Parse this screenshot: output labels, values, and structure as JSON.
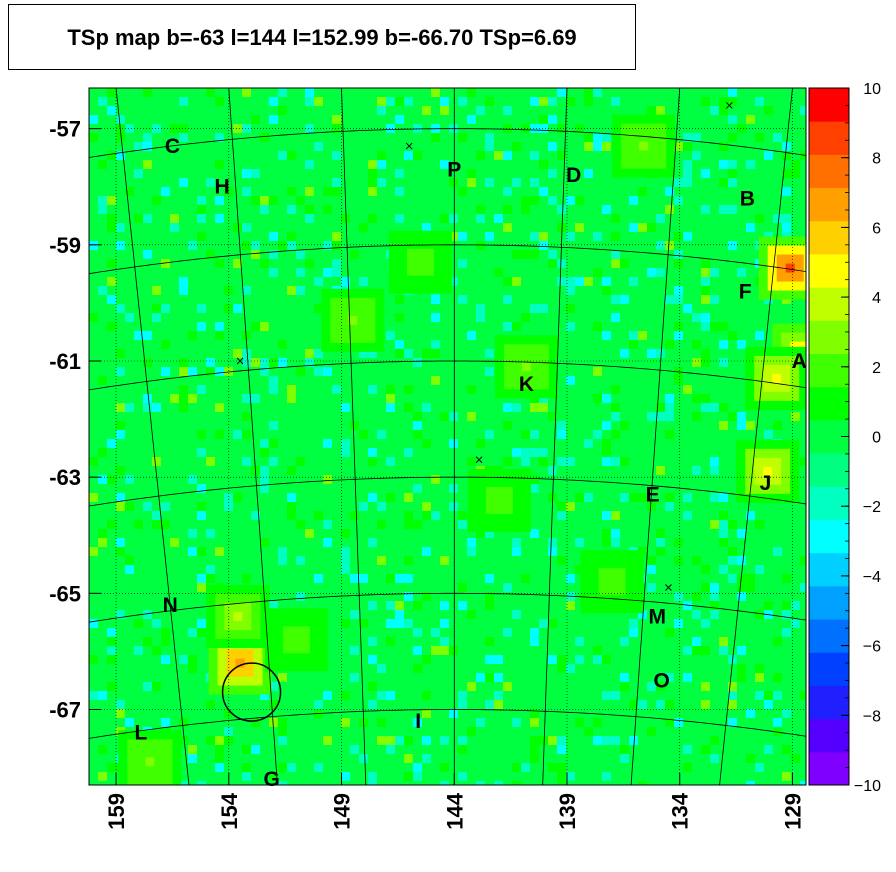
{
  "chart_data": {
    "type": "heatmap",
    "title": "TSp map b=-63 l=144 l=152.99 b=-66.70 TSp=6.69",
    "x_ticks": [
      "159",
      "154",
      "149",
      "144",
      "139",
      "134",
      "129"
    ],
    "y_ticks": [
      "-57",
      "-59",
      "-61",
      "-63",
      "-65",
      "-67"
    ],
    "xlim": [
      160.2,
      128.4
    ],
    "ylim": [
      -68.3,
      -56.3
    ],
    "colorbar": {
      "range": [
        -10,
        10
      ],
      "ticks": [
        "10",
        "8",
        "6",
        "4",
        "2",
        "0",
        "−2",
        "−4",
        "−6",
        "−8",
        "−10"
      ],
      "colors": [
        "#8000ff",
        "#5500ff",
        "#2020ff",
        "#0040ff",
        "#0070ff",
        "#00a0ff",
        "#00d0ff",
        "#00ffff",
        "#00ffc0",
        "#00ff80",
        "#00ff40",
        "#00ff00",
        "#40ff00",
        "#80ff00",
        "#c0ff00",
        "#ffff00",
        "#ffd000",
        "#ffa000",
        "#ff7000",
        "#ff4000",
        "#ff0000"
      ]
    },
    "background_value": 0,
    "hotspots": [
      {
        "l": 129.1,
        "b": -59.4,
        "value": 9
      },
      {
        "l": 128.5,
        "b": -60.9,
        "value": 6
      },
      {
        "l": 129.7,
        "b": -61.3,
        "value": 5
      },
      {
        "l": 130.1,
        "b": -62.9,
        "value": 5
      },
      {
        "l": 140.8,
        "b": -61.1,
        "value": 3
      },
      {
        "l": 153.5,
        "b": -66.2,
        "value": 7
      },
      {
        "l": 153.6,
        "b": -65.4,
        "value": 4
      },
      {
        "l": 148.5,
        "b": -60.3,
        "value": 3
      },
      {
        "l": 135.6,
        "b": -57.3,
        "value": 3
      },
      {
        "l": 157.5,
        "b": -67.9,
        "value": 3
      },
      {
        "l": 142.0,
        "b": -63.4,
        "value": 2
      },
      {
        "l": 145.5,
        "b": -59.3,
        "value": 2
      },
      {
        "l": 151.0,
        "b": -65.8,
        "value": 2
      },
      {
        "l": 137.0,
        "b": -64.8,
        "value": 2
      }
    ],
    "regions": [
      {
        "label": "C",
        "l": 156.5,
        "b": -57.3
      },
      {
        "label": "H",
        "l": 154.3,
        "b": -58.0
      },
      {
        "label": "P",
        "l": 144.0,
        "b": -57.7
      },
      {
        "label": "D",
        "l": 138.7,
        "b": -57.8
      },
      {
        "label": "B",
        "l": 131.0,
        "b": -58.2
      },
      {
        "label": "F",
        "l": 131.1,
        "b": -59.8
      },
      {
        "label": "A",
        "l": 128.7,
        "b": -61.0
      },
      {
        "label": "K",
        "l": 140.8,
        "b": -61.4
      },
      {
        "label": "E",
        "l": 135.2,
        "b": -63.3
      },
      {
        "label": "J",
        "l": 130.2,
        "b": -63.1
      },
      {
        "label": "N",
        "l": 156.6,
        "b": -65.2
      },
      {
        "label": "M",
        "l": 135.0,
        "b": -65.4
      },
      {
        "label": "O",
        "l": 134.8,
        "b": -66.5
      },
      {
        "label": "L",
        "l": 157.9,
        "b": -67.4
      },
      {
        "label": "I",
        "l": 145.6,
        "b": -67.2
      },
      {
        "label": "G",
        "l": 152.1,
        "b": -68.2
      }
    ],
    "markers": [
      {
        "l": 146.0,
        "b": -57.3
      },
      {
        "l": 153.5,
        "b": -61.0
      },
      {
        "l": 142.9,
        "b": -62.7
      },
      {
        "l": 134.5,
        "b": -64.9
      },
      {
        "l": 131.8,
        "b": -56.6
      }
    ],
    "circle": {
      "l": 152.99,
      "b": -66.7
    }
  }
}
